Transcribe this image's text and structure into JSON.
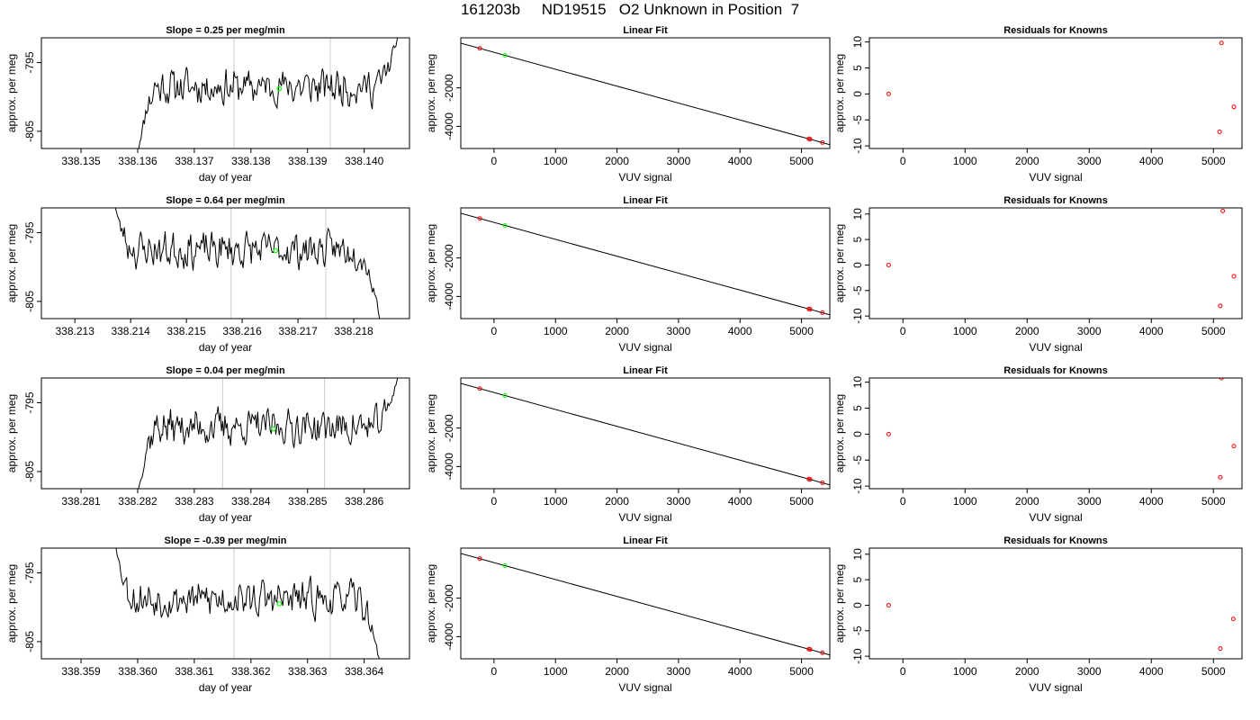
{
  "figure_title": "161203b     ND19515   O2 Unknown in Position  7",
  "colors": {
    "axis": "#000000",
    "trace": "#000000",
    "vline": "#cccccc",
    "highlight_point": "#00ff00",
    "known_point": "#ff0000"
  },
  "chart_data": [
    {
      "type": "line",
      "row": 0,
      "col": 0,
      "title": "Slope =  0.25  per meg/min",
      "xlabel": "day of year",
      "ylabel": "approx. per meg",
      "xlim": [
        338.1343,
        338.1408
      ],
      "ylim": [
        -807.5,
        -791.4
      ],
      "xticks": [
        338.135,
        338.136,
        338.137,
        338.138,
        338.139,
        338.14
      ],
      "xtick_labels": [
        "338.135",
        "338.136",
        "338.137",
        "338.138",
        "338.139",
        "338.140"
      ],
      "yticks": [
        -805,
        -795
      ],
      "ytick_labels": [
        "-805",
        "-795"
      ],
      "vlines": [
        338.1377,
        338.1394
      ],
      "trace_x_start": 338.136,
      "trace_x_end": 338.1406,
      "trace_start_value": -808.5,
      "trace_end_value": -791,
      "trace_level": -798.5,
      "seed": 11,
      "highlight_point": [
        338.1385,
        -798.8
      ]
    },
    {
      "type": "scatter",
      "row": 0,
      "col": 1,
      "title": "Linear Fit",
      "xlabel": "VUV signal",
      "ylabel": "approx. per meg",
      "xlim": [
        -540,
        5460
      ],
      "ylim": [
        -5150,
        600
      ],
      "xticks": [
        0,
        1000,
        2000,
        3000,
        4000,
        5000
      ],
      "xtick_labels": [
        "0",
        "1000",
        "2000",
        "3000",
        "4000",
        "5000"
      ],
      "yticks": [
        -4000,
        -2000
      ],
      "ytick_labels": [
        "-4000",
        "-2000"
      ],
      "fit_line": [
        [
          -540,
          320
        ],
        [
          5460,
          -4950
        ]
      ],
      "points": [
        {
          "x": -230,
          "y": 50,
          "kind": "known"
        },
        {
          "x": 5120,
          "y": -4650,
          "kind": "known"
        },
        {
          "x": 5140,
          "y": -4665,
          "kind": "known"
        },
        {
          "x": 5340,
          "y": -4840,
          "kind": "known"
        },
        {
          "x": 180,
          "y": -310,
          "kind": "unknown"
        }
      ]
    },
    {
      "type": "scatter",
      "row": 0,
      "col": 2,
      "title": "Residuals for Knowns",
      "xlabel": "VUV signal",
      "ylabel": "approx. per meg",
      "xlim": [
        -540,
        5460
      ],
      "ylim": [
        -10.5,
        10.8
      ],
      "xticks": [
        0,
        1000,
        2000,
        3000,
        4000,
        5000
      ],
      "xtick_labels": [
        "0",
        "1000",
        "2000",
        "3000",
        "4000",
        "5000"
      ],
      "yticks": [
        -10,
        -5,
        0,
        5,
        10
      ],
      "ytick_labels": [
        "-10",
        "-5",
        "0",
        "5",
        "10"
      ],
      "points": [
        {
          "x": -230,
          "y": 0,
          "kind": "known"
        },
        {
          "x": 5130,
          "y": 9.8,
          "kind": "known"
        },
        {
          "x": 5100,
          "y": -7.3,
          "kind": "known"
        },
        {
          "x": 5330,
          "y": -2.5,
          "kind": "known"
        }
      ]
    },
    {
      "type": "line",
      "row": 1,
      "col": 0,
      "title": "Slope =  0.64  per meg/min",
      "xlabel": "day of year",
      "ylabel": "approx. per meg",
      "xlim": [
        338.2124,
        338.219
      ],
      "ylim": [
        -807.5,
        -791.4
      ],
      "xticks": [
        338.213,
        338.214,
        338.215,
        338.216,
        338.217,
        338.218
      ],
      "xtick_labels": [
        "338.213",
        "338.214",
        "338.215",
        "338.216",
        "338.217",
        "338.218"
      ],
      "yticks": [
        -805,
        -795
      ],
      "ytick_labels": [
        "-805",
        "-795"
      ],
      "vlines": [
        338.2158,
        338.2175
      ],
      "trace_x_start": 338.2137,
      "trace_x_end": 338.2185,
      "trace_start_value": -790.5,
      "trace_end_value": -809,
      "trace_level": -797.5,
      "seed": 23,
      "highlight_point": [
        338.2166,
        -797.6
      ]
    },
    {
      "type": "scatter",
      "row": 1,
      "col": 1,
      "title": "Linear Fit",
      "xlabel": "VUV signal",
      "ylabel": "approx. per meg",
      "xlim": [
        -540,
        5460
      ],
      "ylim": [
        -5150,
        600
      ],
      "xticks": [
        0,
        1000,
        2000,
        3000,
        4000,
        5000
      ],
      "xtick_labels": [
        "0",
        "1000",
        "2000",
        "3000",
        "4000",
        "5000"
      ],
      "yticks": [
        -4000,
        -2000
      ],
      "ytick_labels": [
        "-4000",
        "-2000"
      ],
      "fit_line": [
        [
          -540,
          320
        ],
        [
          5460,
          -4950
        ]
      ],
      "points": [
        {
          "x": -230,
          "y": 50,
          "kind": "known"
        },
        {
          "x": 5120,
          "y": -4650,
          "kind": "known"
        },
        {
          "x": 5140,
          "y": -4665,
          "kind": "known"
        },
        {
          "x": 5340,
          "y": -4840,
          "kind": "known"
        },
        {
          "x": 180,
          "y": -310,
          "kind": "unknown"
        }
      ]
    },
    {
      "type": "scatter",
      "row": 1,
      "col": 2,
      "title": "Residuals for Knowns",
      "xlabel": "VUV signal",
      "ylabel": "approx. per meg",
      "xlim": [
        -540,
        5460
      ],
      "ylim": [
        -10.5,
        11.2
      ],
      "xticks": [
        0,
        1000,
        2000,
        3000,
        4000,
        5000
      ],
      "xtick_labels": [
        "0",
        "1000",
        "2000",
        "3000",
        "4000",
        "5000"
      ],
      "yticks": [
        -10,
        -5,
        0,
        5,
        10
      ],
      "ytick_labels": [
        "-10",
        "-5",
        "0",
        "5",
        "10"
      ],
      "points": [
        {
          "x": -230,
          "y": 0,
          "kind": "known"
        },
        {
          "x": 5150,
          "y": 10.6,
          "kind": "known"
        },
        {
          "x": 5110,
          "y": -8.0,
          "kind": "known"
        },
        {
          "x": 5330,
          "y": -2.2,
          "kind": "known"
        }
      ]
    },
    {
      "type": "line",
      "row": 2,
      "col": 0,
      "title": "Slope =  0.04  per meg/min",
      "xlabel": "day of year",
      "ylabel": "approx. per meg",
      "xlim": [
        338.2803,
        338.2868
      ],
      "ylim": [
        -807.5,
        -791.4
      ],
      "xticks": [
        338.281,
        338.282,
        338.283,
        338.284,
        338.285,
        338.286
      ],
      "xtick_labels": [
        "338.281",
        "338.282",
        "338.283",
        "338.284",
        "338.285",
        "338.286"
      ],
      "yticks": [
        -805,
        -795
      ],
      "ytick_labels": [
        "-805",
        "-795"
      ],
      "vlines": [
        338.2835,
        338.2853
      ],
      "trace_x_start": 338.282,
      "trace_x_end": 338.2866,
      "trace_start_value": -808.5,
      "trace_end_value": -791,
      "trace_level": -798.5,
      "seed": 37,
      "highlight_point": [
        338.2844,
        -798.8
      ]
    },
    {
      "type": "scatter",
      "row": 2,
      "col": 1,
      "title": "Linear Fit",
      "xlabel": "VUV signal",
      "ylabel": "approx. per meg",
      "xlim": [
        -540,
        5460
      ],
      "ylim": [
        -5150,
        600
      ],
      "xticks": [
        0,
        1000,
        2000,
        3000,
        4000,
        5000
      ],
      "xtick_labels": [
        "0",
        "1000",
        "2000",
        "3000",
        "4000",
        "5000"
      ],
      "yticks": [
        -4000,
        -2000
      ],
      "ytick_labels": [
        "-4000",
        "-2000"
      ],
      "fit_line": [
        [
          -540,
          320
        ],
        [
          5460,
          -4950
        ]
      ],
      "points": [
        {
          "x": -230,
          "y": 50,
          "kind": "known"
        },
        {
          "x": 5120,
          "y": -4650,
          "kind": "known"
        },
        {
          "x": 5140,
          "y": -4665,
          "kind": "known"
        },
        {
          "x": 5340,
          "y": -4840,
          "kind": "known"
        },
        {
          "x": 180,
          "y": -310,
          "kind": "unknown"
        }
      ]
    },
    {
      "type": "scatter",
      "row": 2,
      "col": 2,
      "title": "Residuals for Knowns",
      "xlabel": "VUV signal",
      "ylabel": "approx. per meg",
      "xlim": [
        -540,
        5460
      ],
      "ylim": [
        -10.5,
        10.8
      ],
      "xticks": [
        0,
        1000,
        2000,
        3000,
        4000,
        5000
      ],
      "xtick_labels": [
        "0",
        "1000",
        "2000",
        "3000",
        "4000",
        "5000"
      ],
      "yticks": [
        -10,
        -5,
        0,
        5,
        10
      ],
      "ytick_labels": [
        "-10",
        "-5",
        "0",
        "5",
        "10"
      ],
      "points": [
        {
          "x": -230,
          "y": 0,
          "kind": "known"
        },
        {
          "x": 5130,
          "y": 10.8,
          "kind": "known"
        },
        {
          "x": 5110,
          "y": -8.3,
          "kind": "known"
        },
        {
          "x": 5330,
          "y": -2.3,
          "kind": "known"
        }
      ]
    },
    {
      "type": "line",
      "row": 3,
      "col": 0,
      "title": "Slope =  -0.39  per meg/min",
      "xlabel": "day of year",
      "ylabel": "approx. per meg",
      "xlim": [
        338.3583,
        338.3648
      ],
      "ylim": [
        -807.5,
        -791.4
      ],
      "xticks": [
        338.359,
        338.36,
        338.361,
        338.362,
        338.363,
        338.364
      ],
      "xtick_labels": [
        "338.359",
        "338.360",
        "338.361",
        "338.362",
        "338.363",
        "338.364"
      ],
      "yticks": [
        -805,
        -795
      ],
      "ytick_labels": [
        "-805",
        "-795"
      ],
      "vlines": [
        338.3617,
        338.3634
      ],
      "trace_x_start": 338.3596,
      "trace_x_end": 338.3643,
      "trace_start_value": -790.5,
      "trace_end_value": -809,
      "trace_level": -798.8,
      "seed": 53,
      "highlight_point": [
        338.3625,
        -799.5
      ]
    },
    {
      "type": "scatter",
      "row": 3,
      "col": 1,
      "title": "Linear Fit",
      "xlabel": "VUV signal",
      "ylabel": "approx. per meg",
      "xlim": [
        -540,
        5460
      ],
      "ylim": [
        -5150,
        600
      ],
      "xticks": [
        0,
        1000,
        2000,
        3000,
        4000,
        5000
      ],
      "xtick_labels": [
        "0",
        "1000",
        "2000",
        "3000",
        "4000",
        "5000"
      ],
      "yticks": [
        -4000,
        -2000
      ],
      "ytick_labels": [
        "-4000",
        "-2000"
      ],
      "fit_line": [
        [
          -540,
          320
        ],
        [
          5460,
          -4950
        ]
      ],
      "points": [
        {
          "x": -230,
          "y": 50,
          "kind": "known"
        },
        {
          "x": 5120,
          "y": -4650,
          "kind": "known"
        },
        {
          "x": 5140,
          "y": -4665,
          "kind": "known"
        },
        {
          "x": 5340,
          "y": -4840,
          "kind": "known"
        },
        {
          "x": 180,
          "y": -310,
          "kind": "unknown"
        }
      ]
    },
    {
      "type": "scatter",
      "row": 3,
      "col": 2,
      "title": "Residuals for Knowns",
      "xlabel": "VUV signal",
      "ylabel": "approx. per meg",
      "xlim": [
        -540,
        5460
      ],
      "ylim": [
        -10.5,
        11.2
      ],
      "xticks": [
        0,
        1000,
        2000,
        3000,
        4000,
        5000
      ],
      "xtick_labels": [
        "0",
        "1000",
        "2000",
        "3000",
        "4000",
        "5000"
      ],
      "yticks": [
        -10,
        -5,
        0,
        5,
        10
      ],
      "ytick_labels": [
        "-10",
        "-5",
        "0",
        "5",
        "10"
      ],
      "points": [
        {
          "x": -230,
          "y": 0,
          "kind": "known"
        },
        {
          "x": 5110,
          "y": -8.5,
          "kind": "known"
        },
        {
          "x": 5320,
          "y": -2.7,
          "kind": "known"
        }
      ]
    }
  ]
}
